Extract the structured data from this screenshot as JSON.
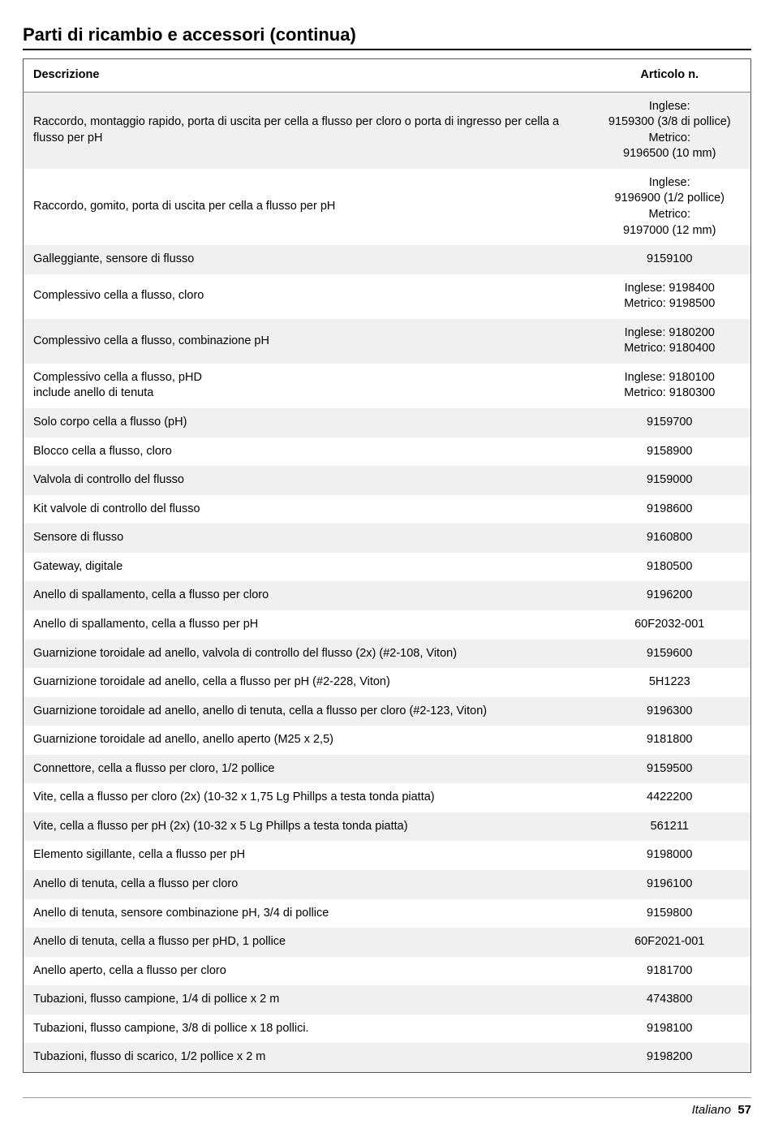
{
  "title": "Parti di ricambio e accessori (continua)",
  "columns": {
    "desc": "Descrizione",
    "item": "Articolo n."
  },
  "rows": [
    {
      "desc": "Raccordo, montaggio rapido, porta di uscita per cella a flusso per cloro o porta di ingresso per cella a flusso per pH",
      "item": "Inglese:\n9159300 (3/8 di pollice)\nMetrico:\n9196500 (10 mm)",
      "bg": "#f0f0f0"
    },
    {
      "desc": "Raccordo, gomito, porta di uscita per cella a flusso per pH",
      "item": "Inglese:\n9196900 (1/2 pollice)\nMetrico:\n9197000 (12 mm)",
      "bg": "#ffffff"
    },
    {
      "desc": "Galleggiante, sensore di flusso",
      "item": "9159100",
      "bg": "#f0f0f0"
    },
    {
      "desc": "Complessivo cella a flusso, cloro",
      "item": "Inglese: 9198400\nMetrico: 9198500",
      "bg": "#ffffff"
    },
    {
      "desc": "Complessivo cella a flusso, combinazione pH",
      "item": "Inglese: 9180200\nMetrico: 9180400",
      "bg": "#f0f0f0"
    },
    {
      "desc": "Complessivo cella a flusso, pHD\ninclude anello di tenuta",
      "item": "Inglese: 9180100\nMetrico: 9180300",
      "bg": "#ffffff"
    },
    {
      "desc": "Solo corpo cella a flusso (pH)",
      "item": "9159700",
      "bg": "#f0f0f0"
    },
    {
      "desc": "Blocco cella a flusso, cloro",
      "item": "9158900",
      "bg": "#ffffff"
    },
    {
      "desc": "Valvola di controllo del flusso",
      "item": "9159000",
      "bg": "#f0f0f0"
    },
    {
      "desc": "Kit valvole di controllo del flusso",
      "item": "9198600",
      "bg": "#ffffff"
    },
    {
      "desc": "Sensore di flusso",
      "item": "9160800",
      "bg": "#f0f0f0"
    },
    {
      "desc": "Gateway, digitale",
      "item": "9180500",
      "bg": "#ffffff"
    },
    {
      "desc": "Anello di spallamento, cella a flusso per cloro",
      "item": "9196200",
      "bg": "#f0f0f0"
    },
    {
      "desc": "Anello di spallamento, cella a flusso per pH",
      "item": "60F2032-001",
      "bg": "#ffffff"
    },
    {
      "desc": "Guarnizione toroidale ad anello, valvola di controllo del flusso (2x) (#2-108, Viton)",
      "item": "9159600",
      "bg": "#f0f0f0"
    },
    {
      "desc": "Guarnizione toroidale ad anello, cella a flusso per pH (#2-228, Viton)",
      "item": "5H1223",
      "bg": "#ffffff"
    },
    {
      "desc": "Guarnizione toroidale ad anello, anello di tenuta, cella a flusso per cloro (#2-123, Viton)",
      "item": "9196300",
      "bg": "#f0f0f0"
    },
    {
      "desc": "Guarnizione toroidale ad anello, anello aperto (M25 x 2,5)",
      "item": "9181800",
      "bg": "#ffffff"
    },
    {
      "desc": "Connettore, cella a flusso per cloro, 1/2 pollice",
      "item": "9159500",
      "bg": "#f0f0f0"
    },
    {
      "desc": "Vite, cella a flusso per cloro (2x) (10-32 x 1,75 Lg Phillps a testa tonda piatta)",
      "item": "4422200",
      "bg": "#ffffff"
    },
    {
      "desc": "Vite, cella a flusso per pH (2x) (10-32 x 5 Lg Phillps a testa tonda piatta)",
      "item": "561211",
      "bg": "#f0f0f0"
    },
    {
      "desc": "Elemento sigillante, cella a flusso per pH",
      "item": "9198000",
      "bg": "#ffffff"
    },
    {
      "desc": "Anello di tenuta, cella a flusso per cloro",
      "item": "9196100",
      "bg": "#f0f0f0"
    },
    {
      "desc": "Anello di tenuta, sensore combinazione pH, 3/4 di pollice",
      "item": "9159800",
      "bg": "#ffffff"
    },
    {
      "desc": "Anello di tenuta, cella a flusso per pHD, 1 pollice",
      "item": "60F2021-001",
      "bg": "#f0f0f0"
    },
    {
      "desc": "Anello aperto, cella a flusso per cloro",
      "item": "9181700",
      "bg": "#ffffff"
    },
    {
      "desc": "Tubazioni, flusso campione, 1/4 di pollice x 2 m",
      "item": "4743800",
      "bg": "#f0f0f0"
    },
    {
      "desc": "Tubazioni, flusso campione, 3/8 di pollice x 18 pollici.",
      "item": "9198100",
      "bg": "#ffffff"
    },
    {
      "desc": "Tubazioni, flusso di scarico, 1/2 pollice x 2 m",
      "item": "9198200",
      "bg": "#f0f0f0"
    }
  ],
  "footer": {
    "lang": "Italiano",
    "page": "57"
  },
  "colors": {
    "stripe": "#f0f0f0",
    "border": "#555555"
  }
}
